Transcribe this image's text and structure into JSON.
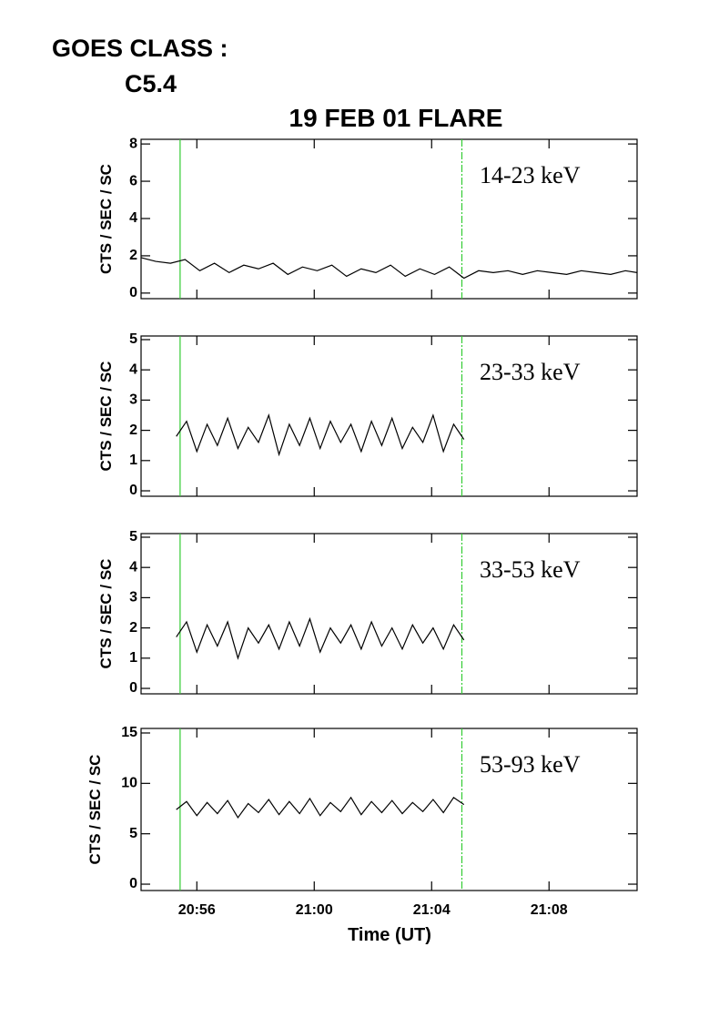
{
  "header": {
    "goes_label": "GOES CLASS :",
    "goes_class": "C5.4",
    "title": "19 FEB 01 FLARE",
    "xlabel": "Time (UT)"
  },
  "chart_data": [
    {
      "type": "line",
      "label": "14-23 keV",
      "ylabel": "CTS / SEC / SC",
      "x": [
        1254.1,
        1254.6,
        1255.1,
        1255.6,
        1256.1,
        1256.6,
        1257.1,
        1257.6,
        1258.1,
        1258.6,
        1259.1,
        1259.6,
        1260.1,
        1260.6,
        1261.1,
        1261.6,
        1262.1,
        1262.6,
        1263.1,
        1263.6,
        1264.1,
        1264.6,
        1265.1,
        1265.6,
        1266.1,
        1266.6,
        1267.1,
        1267.6,
        1268.1,
        1268.6,
        1269.1,
        1269.6,
        1270.1,
        1270.6,
        1271.0
      ],
      "values": [
        1.9,
        1.7,
        1.6,
        1.8,
        1.2,
        1.6,
        1.1,
        1.5,
        1.3,
        1.6,
        1.0,
        1.4,
        1.2,
        1.5,
        0.9,
        1.3,
        1.1,
        1.5,
        0.9,
        1.3,
        1.0,
        1.4,
        0.8,
        1.2,
        1.1,
        1.2,
        1.0,
        1.2,
        1.1,
        1.0,
        1.2,
        1.1,
        1.0,
        1.2,
        1.1
      ],
      "color": "#000000",
      "xlim": [
        1254.1,
        1271.0
      ],
      "ylim": [
        -0.3,
        8.25
      ],
      "yticks": [
        0,
        2,
        4,
        6,
        8
      ],
      "xticks": [
        1256,
        1260,
        1264,
        1268
      ],
      "vlines": [
        1255.43,
        1265.03
      ],
      "vline_color": "#33cc33"
    },
    {
      "type": "line",
      "label": "23-33 keV",
      "ylabel": "CTS / SEC / SC",
      "x": [
        1255.3,
        1255.65,
        1256.0,
        1256.35,
        1256.7,
        1257.05,
        1257.4,
        1257.75,
        1258.1,
        1258.45,
        1258.8,
        1259.15,
        1259.5,
        1259.85,
        1260.2,
        1260.55,
        1260.9,
        1261.25,
        1261.6,
        1261.95,
        1262.3,
        1262.65,
        1263.0,
        1263.35,
        1263.7,
        1264.05,
        1264.4,
        1264.75,
        1265.1
      ],
      "values": [
        1.8,
        2.3,
        1.3,
        2.2,
        1.5,
        2.4,
        1.4,
        2.1,
        1.6,
        2.5,
        1.2,
        2.2,
        1.5,
        2.4,
        1.4,
        2.3,
        1.6,
        2.2,
        1.3,
        2.3,
        1.5,
        2.4,
        1.4,
        2.1,
        1.6,
        2.5,
        1.3,
        2.2,
        1.7
      ],
      "color": "#000000",
      "xlim": [
        1254.1,
        1271.0
      ],
      "ylim": [
        -0.18,
        5.12
      ],
      "yticks": [
        0,
        1,
        2,
        3,
        4,
        5
      ],
      "xticks": [
        1256,
        1260,
        1264,
        1268
      ],
      "vlines": [
        1255.43,
        1265.03
      ],
      "vline_color": "#33cc33"
    },
    {
      "type": "line",
      "label": "33-53 keV",
      "ylabel": "CTS / SEC / SC",
      "x": [
        1255.3,
        1255.65,
        1256.0,
        1256.35,
        1256.7,
        1257.05,
        1257.4,
        1257.75,
        1258.1,
        1258.45,
        1258.8,
        1259.15,
        1259.5,
        1259.85,
        1260.2,
        1260.55,
        1260.9,
        1261.25,
        1261.6,
        1261.95,
        1262.3,
        1262.65,
        1263.0,
        1263.35,
        1263.7,
        1264.05,
        1264.4,
        1264.75,
        1265.1
      ],
      "values": [
        1.7,
        2.2,
        1.2,
        2.1,
        1.4,
        2.2,
        1.0,
        2.0,
        1.5,
        2.1,
        1.3,
        2.2,
        1.4,
        2.3,
        1.2,
        2.0,
        1.5,
        2.1,
        1.3,
        2.2,
        1.4,
        2.0,
        1.3,
        2.1,
        1.5,
        2.0,
        1.3,
        2.1,
        1.6
      ],
      "color": "#000000",
      "xlim": [
        1254.1,
        1271.0
      ],
      "ylim": [
        -0.18,
        5.12
      ],
      "yticks": [
        0,
        1,
        2,
        3,
        4,
        5
      ],
      "xticks": [
        1256,
        1260,
        1264,
        1268
      ],
      "vlines": [
        1255.43,
        1265.03
      ],
      "vline_color": "#33cc33"
    },
    {
      "type": "line",
      "label": "53-93 keV",
      "ylabel": "CTS / SEC / SC",
      "x": [
        1255.3,
        1255.65,
        1256.0,
        1256.35,
        1256.7,
        1257.05,
        1257.4,
        1257.75,
        1258.1,
        1258.45,
        1258.8,
        1259.15,
        1259.5,
        1259.85,
        1260.2,
        1260.55,
        1260.9,
        1261.25,
        1261.6,
        1261.95,
        1262.3,
        1262.65,
        1263.0,
        1263.35,
        1263.7,
        1264.05,
        1264.4,
        1264.75,
        1265.1
      ],
      "values": [
        7.4,
        8.2,
        6.8,
        8.1,
        7.0,
        8.3,
        6.6,
        8.0,
        7.1,
        8.4,
        6.9,
        8.2,
        7.0,
        8.5,
        6.8,
        8.1,
        7.2,
        8.6,
        6.9,
        8.2,
        7.1,
        8.3,
        7.0,
        8.1,
        7.2,
        8.4,
        7.1,
        8.6,
        7.9
      ],
      "color": "#000000",
      "xlim": [
        1254.1,
        1271.0
      ],
      "ylim": [
        -0.63,
        15.45
      ],
      "yticks": [
        0,
        5,
        10,
        15
      ],
      "xticks": [
        {
          "value": 1256,
          "label": "20:56"
        },
        {
          "value": 1260,
          "label": "21:00"
        },
        {
          "value": 1264,
          "label": "21:04"
        },
        {
          "value": 1268,
          "label": "21:08"
        }
      ],
      "vlines": [
        1255.43,
        1265.03
      ],
      "vline_color": "#33cc33"
    }
  ]
}
